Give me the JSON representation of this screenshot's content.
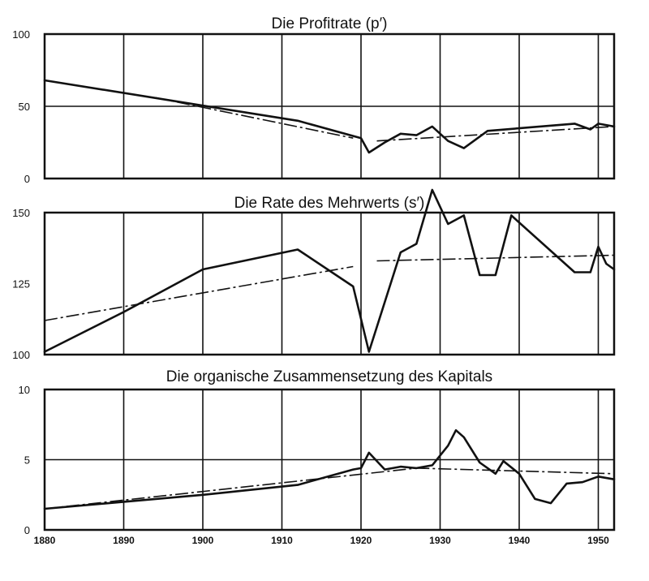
{
  "chart_data": [
    {
      "type": "line",
      "title": "Die Profitrate (p′)",
      "xlim": [
        1880,
        1952
      ],
      "ylim": [
        0,
        100
      ],
      "yticks": [
        0,
        50,
        100
      ],
      "xgrid": [
        1890,
        1900,
        1910,
        1920,
        1930,
        1940,
        1950
      ],
      "ygrid": [
        50
      ],
      "series": [
        {
          "style": "solid",
          "x": [
            1880,
            1912,
            1920,
            1921,
            1923,
            1925,
            1927,
            1929,
            1931,
            1933,
            1936,
            1947,
            1949,
            1950,
            1952
          ],
          "y": [
            68,
            40,
            28,
            18,
            25,
            31,
            30,
            36,
            26,
            21,
            33,
            38,
            34,
            38,
            36
          ]
        },
        {
          "style": "dash-dot",
          "x": [
            1894,
            1919
          ],
          "y": [
            56,
            28
          ]
        },
        {
          "style": "dash-dot",
          "x": [
            1922,
            1952
          ],
          "y": [
            26,
            36
          ]
        }
      ]
    },
    {
      "type": "line",
      "title": "Die Rate des Mehrwerts (s′)",
      "xlim": [
        1880,
        1952
      ],
      "ylim": [
        100,
        150
      ],
      "yticks": [
        100,
        125,
        150
      ],
      "xgrid": [
        1890,
        1900,
        1910,
        1920,
        1930,
        1940,
        1950
      ],
      "ygrid": [
        150
      ],
      "series": [
        {
          "style": "solid",
          "x": [
            1880,
            1890,
            1900,
            1912,
            1919,
            1921,
            1925,
            1927,
            1929,
            1931,
            1933,
            1935,
            1937,
            1939,
            1947,
            1949,
            1950,
            1951,
            1952
          ],
          "y": [
            101,
            115,
            130,
            137,
            124,
            101,
            136,
            139,
            158,
            146,
            149,
            128,
            128,
            149,
            129,
            129,
            138,
            132,
            130
          ]
        },
        {
          "style": "dash-dot",
          "x": [
            1880,
            1919
          ],
          "y": [
            112,
            131
          ]
        },
        {
          "style": "dash-dot",
          "x": [
            1922,
            1952
          ],
          "y": [
            133,
            135
          ]
        }
      ]
    },
    {
      "type": "line",
      "title": "Die organische Zusammensetzung des Kapitals",
      "xlim": [
        1880,
        1952
      ],
      "ylim": [
        0,
        10
      ],
      "yticks": [
        0,
        5,
        10
      ],
      "xticks": [
        1880,
        1890,
        1900,
        1910,
        1920,
        1930,
        1940,
        1950
      ],
      "xgrid": [
        1890,
        1900,
        1910,
        1920,
        1930,
        1940,
        1950
      ],
      "ygrid": [
        5
      ],
      "series": [
        {
          "style": "solid",
          "x": [
            1880,
            1900,
            1912,
            1919,
            1920,
            1921,
            1923,
            1925,
            1927,
            1929,
            1931,
            1932,
            1933,
            1935,
            1937,
            1938,
            1940,
            1942,
            1944,
            1946,
            1948,
            1950,
            1952
          ],
          "y": [
            1.5,
            2.5,
            3.2,
            4.3,
            4.4,
            5.5,
            4.3,
            4.5,
            4.4,
            4.6,
            6.0,
            7.1,
            6.6,
            4.8,
            4.0,
            4.9,
            4.0,
            2.2,
            1.9,
            3.3,
            3.4,
            3.8,
            3.6
          ]
        },
        {
          "style": "dash-dot",
          "x": [
            1880,
            1927
          ],
          "y": [
            1.5,
            4.4
          ]
        },
        {
          "style": "dash-dot",
          "x": [
            1927,
            1952
          ],
          "y": [
            4.4,
            4.0
          ]
        }
      ]
    }
  ]
}
